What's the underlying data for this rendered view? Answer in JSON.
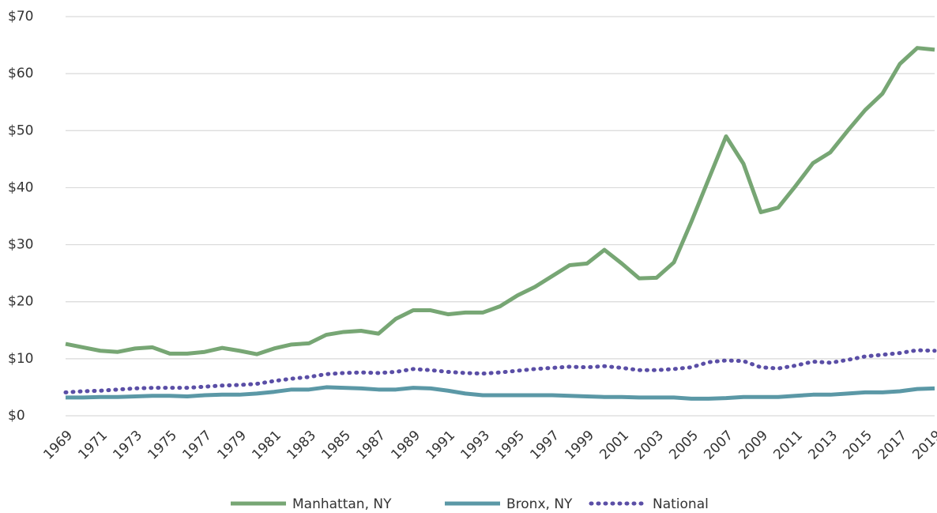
{
  "chart_data": {
    "type": "line",
    "x": [
      1969,
      1970,
      1971,
      1972,
      1973,
      1974,
      1975,
      1976,
      1977,
      1978,
      1979,
      1980,
      1981,
      1982,
      1983,
      1984,
      1985,
      1986,
      1987,
      1988,
      1989,
      1990,
      1991,
      1992,
      1993,
      1994,
      1995,
      1996,
      1997,
      1998,
      1999,
      2000,
      2001,
      2002,
      2003,
      2004,
      2005,
      2006,
      2007,
      2008,
      2009,
      2010,
      2011,
      2012,
      2013,
      2014,
      2015,
      2016,
      2017,
      2018,
      2019
    ],
    "xlim": [
      1969,
      2019
    ],
    "xticks": [
      1969,
      1971,
      1973,
      1975,
      1977,
      1979,
      1981,
      1983,
      1985,
      1987,
      1989,
      1991,
      1993,
      1995,
      1997,
      1999,
      2001,
      2003,
      2005,
      2007,
      2009,
      2011,
      2013,
      2015,
      2017,
      2019
    ],
    "ylim": [
      0,
      70
    ],
    "yticks": [
      {
        "value": 0,
        "label": "$0"
      },
      {
        "value": 10,
        "label": "$10"
      },
      {
        "value": 20,
        "label": "$20"
      },
      {
        "value": 30,
        "label": "$30"
      },
      {
        "value": 40,
        "label": "$40"
      },
      {
        "value": 50,
        "label": "$50"
      },
      {
        "value": 60,
        "label": "$60"
      },
      {
        "value": 70,
        "label": "$70"
      }
    ],
    "grid": true,
    "legend": "bottom",
    "series": [
      {
        "name": "Manhattan, NY",
        "color": "#77a674",
        "line_style": "solid",
        "values": [
          12.6,
          12.0,
          11.4,
          11.2,
          11.8,
          12.0,
          10.9,
          10.9,
          11.2,
          11.9,
          11.4,
          10.8,
          11.8,
          12.5,
          12.7,
          14.2,
          14.7,
          14.9,
          14.4,
          17.0,
          18.5,
          18.5,
          17.8,
          18.1,
          18.1,
          19.2,
          21.1,
          22.6,
          24.5,
          26.4,
          26.7,
          29.1,
          26.7,
          24.1,
          24.2,
          26.9,
          34.0,
          41.5,
          49.0,
          44.2,
          35.7,
          36.5,
          40.3,
          44.3,
          46.2,
          50.0,
          53.6,
          56.5,
          61.7,
          64.5,
          64.2
        ]
      },
      {
        "name": "Bronx, NY",
        "color": "#5b98a6",
        "line_style": "solid",
        "values": [
          3.2,
          3.2,
          3.3,
          3.3,
          3.4,
          3.5,
          3.5,
          3.4,
          3.6,
          3.7,
          3.7,
          3.9,
          4.2,
          4.6,
          4.6,
          5.0,
          4.9,
          4.8,
          4.6,
          4.6,
          4.9,
          4.8,
          4.4,
          3.9,
          3.6,
          3.6,
          3.6,
          3.6,
          3.6,
          3.5,
          3.4,
          3.3,
          3.3,
          3.2,
          3.2,
          3.2,
          3.0,
          3.0,
          3.1,
          3.3,
          3.3,
          3.3,
          3.5,
          3.7,
          3.7,
          3.9,
          4.1,
          4.1,
          4.3,
          4.7,
          4.8
        ]
      },
      {
        "name": "National",
        "color": "#5a4ea6",
        "line_style": "dotted",
        "values": [
          4.1,
          4.3,
          4.4,
          4.6,
          4.8,
          4.9,
          4.9,
          4.9,
          5.1,
          5.3,
          5.4,
          5.6,
          6.1,
          6.5,
          6.8,
          7.3,
          7.5,
          7.6,
          7.5,
          7.7,
          8.2,
          8.0,
          7.7,
          7.5,
          7.4,
          7.6,
          7.9,
          8.2,
          8.4,
          8.6,
          8.5,
          8.7,
          8.4,
          8.0,
          8.0,
          8.2,
          8.5,
          9.4,
          9.7,
          9.6,
          8.5,
          8.3,
          8.8,
          9.5,
          9.3,
          9.8,
          10.4,
          10.7,
          11.0,
          11.5,
          11.4
        ]
      }
    ]
  }
}
